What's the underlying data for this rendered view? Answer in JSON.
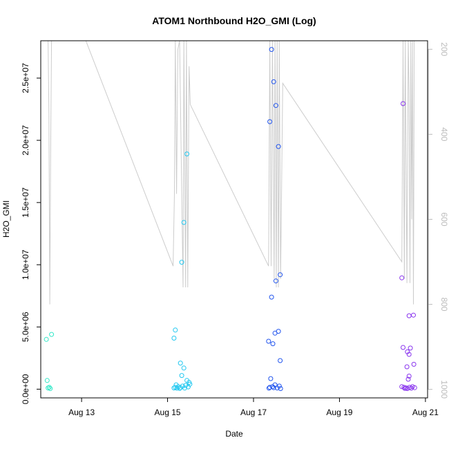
{
  "chart_data": {
    "type": "scatter",
    "title": "ATOM1 Northbound H2O_GMI (Log)",
    "xlabel": "Date",
    "ylabel": "H2O_GMI",
    "x_ticks": [
      {
        "label": "Aug 13",
        "day": 13
      },
      {
        "label": "Aug 15",
        "day": 15
      },
      {
        "label": "Aug 17",
        "day": 17
      },
      {
        "label": "Aug 19",
        "day": 19
      },
      {
        "label": "Aug 21",
        "day": 21
      }
    ],
    "xlim": [
      12.05,
      21.05
    ],
    "ylim": [
      -700000,
      28000000
    ],
    "y_ticks": [
      {
        "label": "0.0e+00",
        "value": 0
      },
      {
        "label": "5.0e+06",
        "value": 5000000
      },
      {
        "label": "1.0e+07",
        "value": 10000000
      },
      {
        "label": "1.5e+07",
        "value": 15000000
      },
      {
        "label": "2.0e+07",
        "value": 20000000
      },
      {
        "label": "2.5e+07",
        "value": 25000000
      }
    ],
    "secondary_axis": {
      "side": "right",
      "color": "#bbbbbb",
      "ylim": [
        1020,
        180
      ],
      "ticks": [
        {
          "label": "200",
          "value": 200
        },
        {
          "label": "400",
          "value": 400
        },
        {
          "label": "600",
          "value": 600
        },
        {
          "label": "800",
          "value": 800
        },
        {
          "label": "1000",
          "value": 1000
        }
      ]
    },
    "background_line": {
      "color": "#cccccc",
      "points": [
        [
          12.22,
          180
        ],
        [
          12.24,
          350
        ],
        [
          12.26,
          800
        ],
        [
          12.28,
          450
        ],
        [
          12.3,
          180
        ],
        [
          13.1,
          180
        ],
        [
          15.13,
          710
        ],
        [
          15.16,
          540
        ],
        [
          15.18,
          180
        ],
        [
          15.21,
          540
        ],
        [
          15.24,
          200
        ],
        [
          15.28,
          180
        ],
        [
          15.36,
          760
        ],
        [
          15.38,
          180
        ],
        [
          15.42,
          760
        ],
        [
          15.44,
          180
        ],
        [
          15.47,
          760
        ],
        [
          15.5,
          240
        ],
        [
          15.53,
          330
        ],
        [
          17.35,
          710
        ],
        [
          17.38,
          180
        ],
        [
          17.41,
          710
        ],
        [
          17.44,
          180
        ],
        [
          17.48,
          740
        ],
        [
          17.5,
          180
        ],
        [
          17.53,
          760
        ],
        [
          17.55,
          180
        ],
        [
          17.58,
          760
        ],
        [
          17.6,
          180
        ],
        [
          17.63,
          740
        ],
        [
          17.68,
          280
        ],
        [
          20.45,
          700
        ],
        [
          20.48,
          180
        ],
        [
          20.51,
          740
        ],
        [
          20.53,
          180
        ],
        [
          20.57,
          750
        ],
        [
          20.6,
          180
        ],
        [
          20.62,
          300
        ],
        [
          20.64,
          750
        ],
        [
          20.66,
          180
        ],
        [
          20.68,
          600
        ],
        [
          20.7,
          180
        ],
        [
          20.72,
          800
        ],
        [
          20.74,
          180
        ]
      ]
    },
    "series": [
      {
        "color": "#33e8c8",
        "points": [
          [
            12.18,
            4000000
          ],
          [
            12.3,
            4400000
          ],
          [
            12.2,
            700000
          ],
          [
            12.22,
            100000
          ],
          [
            12.25,
            150000
          ],
          [
            12.27,
            50000
          ]
        ]
      },
      {
        "color": "#22c8f0",
        "points": [
          [
            15.15,
            4100000
          ],
          [
            15.18,
            4750000
          ],
          [
            15.33,
            10200000
          ],
          [
            15.38,
            13400000
          ],
          [
            15.45,
            18900000
          ],
          [
            15.3,
            2100000
          ],
          [
            15.38,
            1700000
          ],
          [
            15.33,
            1100000
          ],
          [
            15.45,
            700000
          ],
          [
            15.5,
            550000
          ],
          [
            15.15,
            100000
          ],
          [
            15.18,
            150000
          ],
          [
            15.22,
            80000
          ],
          [
            15.25,
            200000
          ],
          [
            15.28,
            60000
          ],
          [
            15.3,
            120000
          ],
          [
            15.35,
            250000
          ],
          [
            15.4,
            90000
          ],
          [
            15.42,
            300000
          ],
          [
            15.48,
            180000
          ],
          [
            15.52,
            400000
          ],
          [
            15.2,
            350000
          ]
        ]
      },
      {
        "color": "#2255ee",
        "points": [
          [
            17.42,
            27300000
          ],
          [
            17.47,
            24700000
          ],
          [
            17.52,
            22800000
          ],
          [
            17.38,
            21500000
          ],
          [
            17.58,
            19500000
          ],
          [
            17.62,
            9200000
          ],
          [
            17.52,
            8700000
          ],
          [
            17.42,
            7400000
          ],
          [
            17.58,
            4650000
          ],
          [
            17.5,
            4500000
          ],
          [
            17.35,
            3850000
          ],
          [
            17.45,
            3650000
          ],
          [
            17.62,
            2300000
          ],
          [
            17.4,
            850000
          ],
          [
            17.38,
            150000
          ],
          [
            17.44,
            200000
          ],
          [
            17.5,
            350000
          ],
          [
            17.55,
            100000
          ],
          [
            17.6,
            250000
          ],
          [
            17.63,
            50000
          ],
          [
            17.36,
            80000
          ],
          [
            17.47,
            120000
          ]
        ]
      },
      {
        "color": "#8833ee",
        "points": [
          [
            20.48,
            22950000
          ],
          [
            20.45,
            8950000
          ],
          [
            20.72,
            5950000
          ],
          [
            20.62,
            5900000
          ],
          [
            20.48,
            3350000
          ],
          [
            20.65,
            3300000
          ],
          [
            20.58,
            3000000
          ],
          [
            20.62,
            2800000
          ],
          [
            20.73,
            2000000
          ],
          [
            20.57,
            1800000
          ],
          [
            20.62,
            1050000
          ],
          [
            20.6,
            800000
          ],
          [
            20.45,
            200000
          ],
          [
            20.5,
            150000
          ],
          [
            20.55,
            100000
          ],
          [
            20.58,
            50000
          ],
          [
            20.63,
            150000
          ],
          [
            20.67,
            80000
          ],
          [
            20.7,
            200000
          ],
          [
            20.75,
            120000
          ],
          [
            20.52,
            60000
          ]
        ]
      }
    ]
  }
}
